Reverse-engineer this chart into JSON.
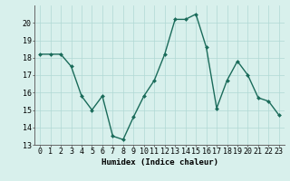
{
  "x": [
    0,
    1,
    2,
    3,
    4,
    5,
    6,
    7,
    8,
    9,
    10,
    11,
    12,
    13,
    14,
    15,
    16,
    17,
    18,
    19,
    20,
    21,
    22,
    23
  ],
  "y": [
    18.2,
    18.2,
    18.2,
    17.5,
    15.8,
    15.0,
    15.8,
    13.5,
    13.3,
    14.6,
    15.8,
    16.7,
    18.2,
    20.2,
    20.2,
    20.5,
    18.6,
    15.1,
    16.7,
    17.8,
    17.0,
    15.7,
    15.5,
    14.7
  ],
  "line_color": "#1a6b5a",
  "marker": "D",
  "marker_size": 2.0,
  "linewidth": 1.0,
  "bg_color": "#d8f0ec",
  "grid_color": "#b0d8d4",
  "xlabel": "Humidex (Indice chaleur)",
  "xlim": [
    -0.5,
    23.5
  ],
  "ylim": [
    13,
    21
  ],
  "yticks": [
    13,
    14,
    15,
    16,
    17,
    18,
    19,
    20
  ],
  "xticks": [
    0,
    1,
    2,
    3,
    4,
    5,
    6,
    7,
    8,
    9,
    10,
    11,
    12,
    13,
    14,
    15,
    16,
    17,
    18,
    19,
    20,
    21,
    22,
    23
  ],
  "xlabel_fontsize": 6.5,
  "tick_fontsize": 6.0
}
